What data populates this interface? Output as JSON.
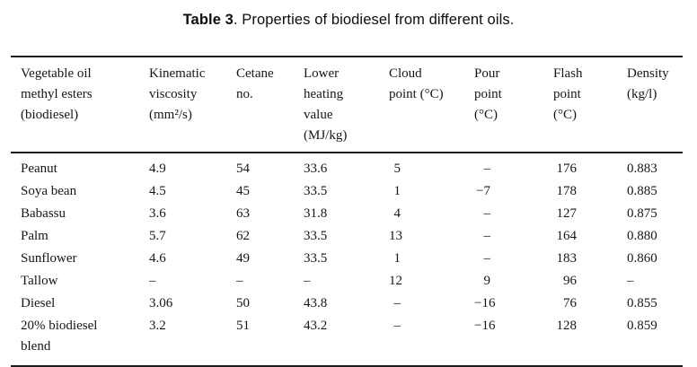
{
  "caption": {
    "label_bold": "Table 3",
    "label_rest": ". Properties of biodiesel from different oils."
  },
  "table": {
    "columns": [
      {
        "lines": [
          "Vegetable oil",
          "methyl esters",
          "(biodiesel)"
        ]
      },
      {
        "lines": [
          "Kinematic",
          "viscosity",
          "(mm²/s)"
        ]
      },
      {
        "lines": [
          "Cetane",
          "no."
        ]
      },
      {
        "lines": [
          "Lower",
          "heating",
          "value",
          "(MJ/kg)"
        ]
      },
      {
        "lines": [
          "Cloud",
          "point (°C)"
        ]
      },
      {
        "lines": [
          "Pour",
          "point",
          "(°C)"
        ]
      },
      {
        "lines": [
          "Flash",
          "point",
          "(°C)"
        ]
      },
      {
        "lines": [
          "Density",
          "(kg/l)"
        ]
      }
    ],
    "rows": [
      {
        "cells": [
          "Peanut",
          "4.9",
          "54",
          "33.6",
          "5",
          "–",
          "176",
          "0.883"
        ]
      },
      {
        "cells": [
          "Soya bean",
          "4.5",
          "45",
          "33.5",
          "1",
          "−7",
          "178",
          "0.885"
        ]
      },
      {
        "cells": [
          "Babassu",
          "3.6",
          "63",
          "31.8",
          "4",
          "–",
          "127",
          "0.875"
        ]
      },
      {
        "cells": [
          "Palm",
          "5.7",
          "62",
          "33.5",
          "13",
          "–",
          "164",
          "0.880"
        ]
      },
      {
        "cells": [
          "Sunflower",
          "4.6",
          "49",
          "33.5",
          "1",
          "–",
          "183",
          "0.860"
        ]
      },
      {
        "cells": [
          "Tallow",
          "–",
          "–",
          "–",
          "12",
          "9",
          "96",
          "–"
        ]
      },
      {
        "cells": [
          "Diesel",
          "3.06",
          "50",
          "43.8",
          "–",
          "−16",
          "76",
          "0.855"
        ]
      },
      {
        "cells": [
          "20% biodiesel blend",
          "3.2",
          "51",
          "43.2",
          "–",
          "−16",
          "128",
          "0.859"
        ]
      }
    ],
    "colors": {
      "rule": "#1c1c1c",
      "text": "#161616",
      "background": "#ffffff"
    }
  }
}
